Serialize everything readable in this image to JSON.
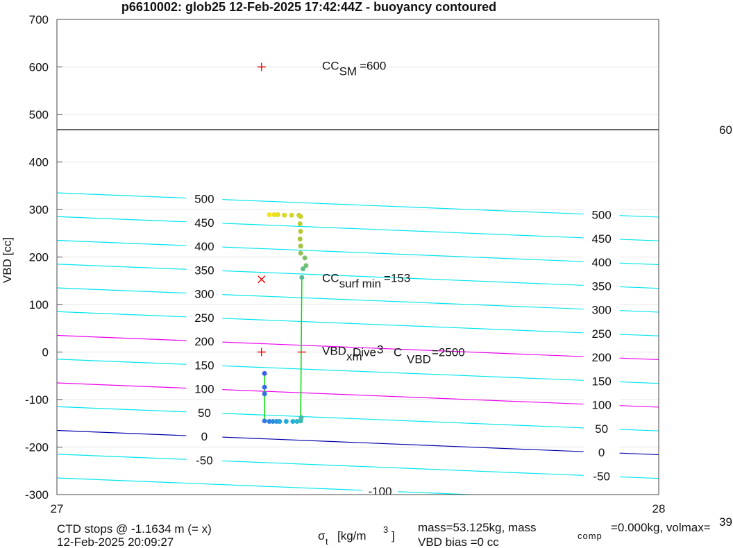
{
  "chart_data": {
    "type": "contour",
    "title": "p6610002: glob25 12-Feb-2025 17:42:44Z - buoyancy contoured",
    "xlabel": {
      "symbol": "σ",
      "sub": "t",
      "text": "[kg/m",
      "sup": "3",
      "close": "]"
    },
    "ylabel": "VBD [cc]",
    "xlim": [
      27,
      28
    ],
    "xticks": [
      27,
      28
    ],
    "ylim": [
      -300,
      700
    ],
    "yticks": [
      -300,
      -200,
      -100,
      0,
      100,
      200,
      300,
      400,
      500,
      600,
      700
    ],
    "grid": true,
    "contours": [
      {
        "level": 500,
        "y_start": 335,
        "y_end": 284,
        "color": "#00e5ee"
      },
      {
        "level": 450,
        "y_start": 285,
        "y_end": 234,
        "color": "#00e5ee"
      },
      {
        "level": 400,
        "y_start": 235,
        "y_end": 184,
        "color": "#00e5ee"
      },
      {
        "level": 350,
        "y_start": 185,
        "y_end": 134,
        "color": "#00e5ee"
      },
      {
        "level": 300,
        "y_start": 135,
        "y_end": 84,
        "color": "#00e5ee"
      },
      {
        "level": 250,
        "y_start": 85,
        "y_end": 34,
        "color": "#00e5ee"
      },
      {
        "level": 200,
        "y_start": 35,
        "y_end": -16,
        "color": "#ee00ee"
      },
      {
        "level": 150,
        "y_start": -15,
        "y_end": -66,
        "color": "#00e5ee"
      },
      {
        "level": 100,
        "y_start": -65,
        "y_end": -116,
        "color": "#ee00ee"
      },
      {
        "level": 50,
        "y_start": -115,
        "y_end": -166,
        "color": "#00e5ee"
      },
      {
        "level": 0,
        "y_start": -165,
        "y_end": -216,
        "color": "#0000aa"
      },
      {
        "level": -50,
        "y_start": -215,
        "y_end": -266,
        "color": "#00e5ee"
      },
      {
        "level": -100,
        "y_start": -265,
        "y_end": -316,
        "color": "#00e5ee"
      }
    ],
    "hline": {
      "y": 468,
      "color": "#000000",
      "label": "60"
    },
    "markers": [
      {
        "x": 27.34,
        "y": 600,
        "symbol": "+",
        "color": "#ee0000",
        "label": "CC",
        "label_sub": "SM",
        "label_end": "=600"
      },
      {
        "x": 27.34,
        "y": 153,
        "symbol": "x",
        "color": "#ee0000",
        "label": "CC",
        "label_sub": "surf min",
        "label_end": "=153"
      },
      {
        "x": 27.34,
        "y": 0,
        "symbol": "+",
        "color": "#ee0000",
        "label": "VBD",
        "label_sub": "xm"
      },
      {
        "x": 27.407,
        "y": 0,
        "symbol": "-",
        "color": "#ee0000"
      }
    ],
    "overlay_text": {
      "a": "Dive",
      "b": "3",
      "c": "C",
      "c_sub": "VBD",
      "c_end": "=2500"
    },
    "lines": [
      {
        "color": "#00dd00",
        "x": [
          27.345,
          27.345
        ],
        "y": [
          -45,
          -145
        ]
      },
      {
        "color": "#00dd00",
        "x": [
          27.405,
          27.407
        ],
        "y": [
          -145,
          157
        ]
      }
    ],
    "points": {
      "colormap": [
        "#3a5fe8",
        "#20b6d6",
        "#a8c43a",
        "#f5e21c"
      ],
      "x": [
        27.345,
        27.345,
        27.345,
        27.345,
        27.353,
        27.359,
        27.365,
        27.37,
        27.381,
        27.392,
        27.399,
        27.405,
        27.406,
        27.407,
        27.409,
        27.414,
        27.412,
        27.405,
        27.405,
        27.404,
        27.405,
        27.404,
        27.405,
        27.402,
        27.39,
        27.378,
        27.367,
        27.361,
        27.353
      ],
      "y": [
        -45,
        -74,
        -88,
        -145,
        -146,
        -146,
        -146,
        -146,
        -146,
        -146,
        -146,
        -145,
        -138,
        157,
        175,
        182,
        198,
        208,
        223,
        238,
        254,
        270,
        285,
        288,
        288,
        288,
        289,
        289,
        289
      ]
    },
    "footer": {
      "ctd": "CTD stops @ -1.1634 m (= x)",
      "time": "12-Feb-2025 20:09:27",
      "mass": "mass=53.125kg, mass",
      "mass_sub": "comp",
      "mass_end": "=0.000kg, volmax=",
      "volmax": "39",
      "bias": "VBD bias =0 cc"
    }
  }
}
